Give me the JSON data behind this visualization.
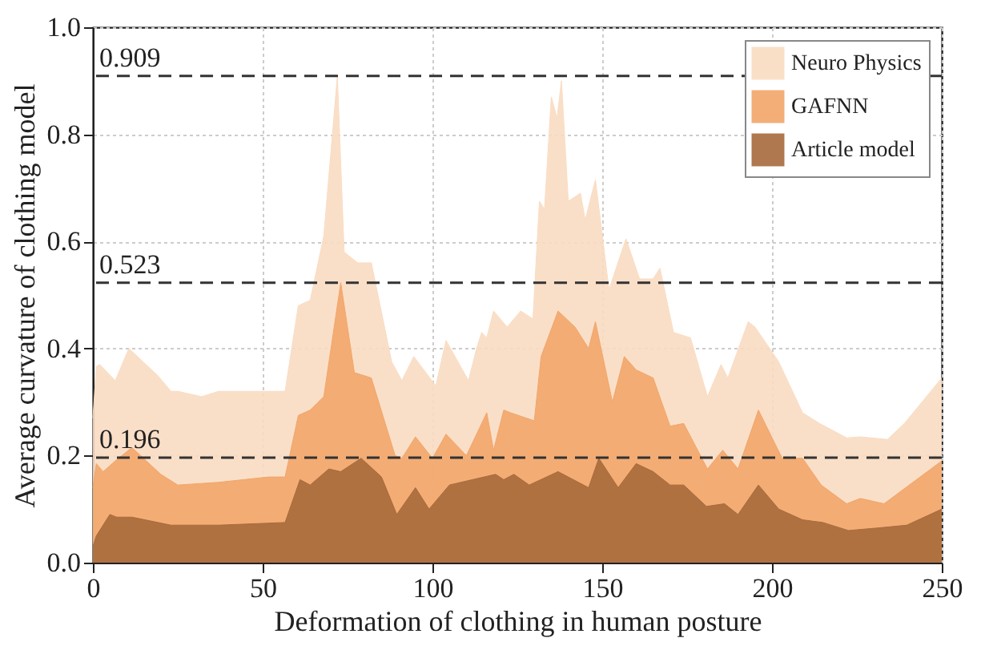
{
  "chart_data": {
    "type": "area",
    "xlabel": "Deformation of clothing in human posture",
    "ylabel": "Average curvature of clothing model",
    "xlim": [
      0,
      250
    ],
    "ylim": [
      0,
      1.0
    ],
    "xticks": [
      0,
      50,
      100,
      150,
      200,
      250
    ],
    "yticks": [
      {
        "value": 0,
        "label": "0.0"
      },
      0.2,
      0.4,
      0.6,
      0.8,
      {
        "value": 1,
        "label": "1.0"
      }
    ],
    "grid": true,
    "legend": "top right",
    "series": [
      {
        "name": "Neuro Physics",
        "color": "#fadcc2",
        "x": [
          0,
          1,
          2,
          6.6,
          10.6,
          19,
          23,
          25,
          32,
          37,
          56.6,
          60.5,
          64,
          68,
          72,
          74,
          78,
          82,
          88,
          91,
          94.5,
          101,
          104,
          110.6,
          113,
          114.5,
          116,
          118,
          122,
          126,
          129.6,
          131.5,
          133,
          135,
          136.7,
          138,
          140,
          143.6,
          145,
          148,
          152,
          157,
          161,
          165,
          167,
          171,
          176,
          181,
          185,
          187,
          193,
          195,
          202,
          209,
          214,
          222,
          226,
          234,
          239,
          250
        ],
        "values": [
          0.27,
          0.366,
          0.37,
          0.34,
          0.4,
          0.35,
          0.32,
          0.32,
          0.31,
          0.32,
          0.32,
          0.48,
          0.49,
          0.61,
          0.909,
          0.58,
          0.56,
          0.56,
          0.375,
          0.34,
          0.385,
          0.33,
          0.415,
          0.34,
          0.4,
          0.43,
          0.42,
          0.47,
          0.44,
          0.47,
          0.455,
          0.675,
          0.66,
          0.87,
          0.83,
          0.9,
          0.675,
          0.69,
          0.64,
          0.715,
          0.51,
          0.605,
          0.53,
          0.53,
          0.55,
          0.43,
          0.42,
          0.31,
          0.37,
          0.345,
          0.45,
          0.44,
          0.375,
          0.28,
          0.26,
          0.233,
          0.235,
          0.23,
          0.26,
          0.345
        ]
      },
      {
        "name": "GAFNN",
        "color": "#f2a66a",
        "x": [
          0,
          1,
          3,
          6.6,
          11.5,
          20,
          25,
          37,
          51.7,
          56.6,
          60.5,
          64,
          68,
          73,
          77,
          82,
          89,
          91,
          95,
          100,
          104,
          110,
          116,
          118,
          121,
          123,
          130,
          132,
          137,
          142,
          146,
          148,
          153,
          156.5,
          160,
          165,
          170,
          174,
          181,
          185.5,
          190,
          196,
          203,
          209,
          214.5,
          222,
          226,
          233,
          250
        ],
        "values": [
          0.14,
          0.185,
          0.17,
          0.19,
          0.215,
          0.165,
          0.145,
          0.15,
          0.16,
          0.16,
          0.275,
          0.285,
          0.31,
          0.523,
          0.355,
          0.345,
          0.2,
          0.195,
          0.235,
          0.195,
          0.24,
          0.2,
          0.28,
          0.21,
          0.285,
          0.28,
          0.265,
          0.385,
          0.47,
          0.44,
          0.4,
          0.45,
          0.3,
          0.385,
          0.36,
          0.345,
          0.255,
          0.26,
          0.175,
          0.21,
          0.175,
          0.285,
          0.195,
          0.195,
          0.145,
          0.11,
          0.12,
          0.11,
          0.19
        ]
      },
      {
        "name": "Article model",
        "color": "#a86a3c",
        "x": [
          0,
          1,
          5,
          7,
          11.5,
          23,
          37,
          56.6,
          61,
          64,
          69.5,
          73,
          79,
          85,
          89.5,
          95,
          99,
          105,
          118.6,
          121,
          124,
          128.5,
          137,
          146,
          149,
          154.7,
          160,
          165,
          170,
          174,
          180.7,
          186,
          190,
          196,
          202,
          209,
          215,
          222.5,
          231.6,
          239.7,
          250
        ],
        "values": [
          0.03,
          0.05,
          0.09,
          0.085,
          0.085,
          0.07,
          0.07,
          0.075,
          0.155,
          0.145,
          0.175,
          0.17,
          0.195,
          0.16,
          0.09,
          0.14,
          0.1,
          0.145,
          0.165,
          0.155,
          0.165,
          0.145,
          0.17,
          0.14,
          0.195,
          0.14,
          0.185,
          0.17,
          0.145,
          0.145,
          0.105,
          0.11,
          0.09,
          0.145,
          0.1,
          0.08,
          0.075,
          0.06,
          0.065,
          0.07,
          0.1
        ]
      }
    ],
    "ref_lines": [
      {
        "axis": "y",
        "value": 0.909,
        "label": "0.909",
        "line_style": "dashed"
      },
      {
        "axis": "y",
        "value": 0.523,
        "label": "0.523",
        "line_style": "dashed"
      },
      {
        "axis": "y",
        "value": 0.196,
        "label": "0.196",
        "line_style": "dashed"
      }
    ]
  }
}
